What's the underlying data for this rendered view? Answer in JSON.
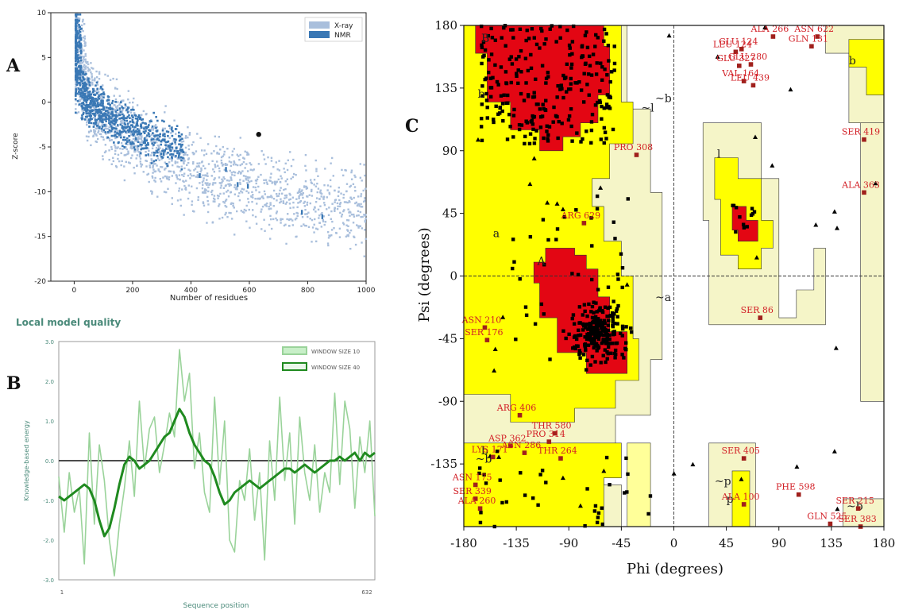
{
  "panel_labels": {
    "a": "A",
    "b": "B",
    "c": "C"
  },
  "chart_data": [
    {
      "id": "A",
      "type": "scatter",
      "title": "",
      "xlabel": "Number of residues",
      "ylabel": "Z-score",
      "xlim": [
        -80,
        1000
      ],
      "ylim": [
        -20,
        10
      ],
      "xticks": [
        0,
        200,
        400,
        600,
        800,
        1000
      ],
      "yticks": [
        -20,
        -15,
        -10,
        -5,
        0,
        5,
        10
      ],
      "legend": "top-right",
      "series": [
        {
          "name": "X-ray",
          "color": "#a9bfdc"
        },
        {
          "name": "NMR",
          "color": "#3a78b5"
        }
      ],
      "highlight_point": {
        "x": 632,
        "y": -3.6
      },
      "grid": false
    },
    {
      "id": "B",
      "type": "line",
      "title": "Local model quality",
      "xlabel": "Sequence position",
      "ylabel": "Knowledge-based energy",
      "xlim": [
        1,
        632
      ],
      "ylim": [
        -3.0,
        3.0
      ],
      "xticks": [
        1,
        632
      ],
      "yticks": [
        -3.0,
        -2.0,
        -1.0,
        0.0,
        1.0,
        2.0,
        3.0
      ],
      "legend": "top-right",
      "series": [
        {
          "name": "WINDOW SIZE 10",
          "color": "#9ad39a",
          "x": [
            1,
            12,
            22,
            32,
            42,
            52,
            62,
            72,
            82,
            92,
            102,
            112,
            122,
            132,
            142,
            152,
            162,
            172,
            182,
            192,
            202,
            212,
            222,
            232,
            242,
            252,
            262,
            272,
            282,
            292,
            302,
            312,
            322,
            332,
            342,
            352,
            362,
            372,
            382,
            392,
            402,
            412,
            422,
            432,
            442,
            452,
            462,
            472,
            482,
            492,
            502,
            512,
            522,
            532,
            542,
            552,
            562,
            572,
            582,
            592,
            602,
            612,
            622,
            632
          ],
          "values": [
            -0.4,
            -1.8,
            -0.3,
            -1.3,
            -0.7,
            -2.6,
            0.7,
            -1.6,
            0.4,
            -0.5,
            -2.0,
            -2.9,
            -1.6,
            -0.7,
            0.5,
            -0.9,
            1.5,
            -0.2,
            0.8,
            1.1,
            -0.3,
            0.4,
            1.2,
            0.6,
            2.8,
            1.5,
            2.2,
            -0.2,
            0.7,
            -0.8,
            -1.3,
            1.6,
            -0.6,
            1.0,
            -2.0,
            -2.3,
            -0.5,
            -1.0,
            0.3,
            -1.5,
            -0.3,
            -2.5,
            0.5,
            -1.0,
            1.6,
            -0.5,
            0.7,
            -1.6,
            1.1,
            -0.3,
            -1.0,
            0.4,
            -1.3,
            -0.3,
            -0.8,
            1.7,
            -0.6,
            1.5,
            0.8,
            -1.2,
            0.6,
            -0.3,
            1.0,
            -1.4
          ]
        },
        {
          "name": "WINDOW SIZE 40",
          "color": "#1f8a1f",
          "x": [
            1,
            12,
            22,
            32,
            42,
            52,
            62,
            72,
            82,
            92,
            102,
            112,
            122,
            132,
            142,
            152,
            162,
            172,
            182,
            192,
            202,
            212,
            222,
            232,
            242,
            252,
            262,
            272,
            282,
            292,
            302,
            312,
            322,
            332,
            342,
            352,
            362,
            372,
            382,
            392,
            402,
            412,
            422,
            432,
            442,
            452,
            462,
            472,
            482,
            492,
            502,
            512,
            522,
            532,
            542,
            552,
            562,
            572,
            582,
            592,
            602,
            612,
            622,
            632
          ],
          "values": [
            -0.9,
            -1.0,
            -0.9,
            -0.8,
            -0.7,
            -0.6,
            -0.7,
            -1.0,
            -1.5,
            -1.9,
            -1.7,
            -1.2,
            -0.6,
            -0.1,
            0.1,
            0.0,
            -0.2,
            -0.1,
            0.0,
            0.2,
            0.4,
            0.6,
            0.7,
            1.0,
            1.3,
            1.1,
            0.7,
            0.4,
            0.2,
            0.0,
            -0.1,
            -0.4,
            -0.8,
            -1.1,
            -1.0,
            -0.8,
            -0.7,
            -0.6,
            -0.5,
            -0.6,
            -0.7,
            -0.6,
            -0.5,
            -0.4,
            -0.3,
            -0.2,
            -0.2,
            -0.3,
            -0.2,
            -0.1,
            -0.2,
            -0.3,
            -0.2,
            -0.1,
            0.0,
            0.0,
            0.1,
            0.0,
            0.1,
            0.2,
            0.0,
            0.2,
            0.1,
            0.2
          ]
        }
      ],
      "zero_line": true
    },
    {
      "id": "C",
      "type": "scatter",
      "title": "",
      "xlabel": "Phi (degrees)",
      "ylabel": "Psi (degrees)",
      "xlim": [
        -180,
        180
      ],
      "ylim": [
        -180,
        180
      ],
      "xticks": [
        -180,
        -135,
        -90,
        -45,
        0,
        45,
        90,
        135,
        180
      ],
      "yticks": [
        -135,
        -90,
        -45,
        0,
        45,
        90,
        135,
        180
      ],
      "region_labels": [
        "B",
        "b",
        "b",
        "A",
        "a",
        "~a",
        "~b",
        "~l",
        "l",
        "~p",
        "p",
        "b",
        "~b",
        "~b"
      ],
      "colors": {
        "core": "#e30613",
        "allowed": "#ffff00",
        "generous": "#ffff99",
        "disallowed_generous": "#f5f5c8"
      },
      "labeled_residues": [
        {
          "label": "ALA 266",
          "phi": 85,
          "psi": 172
        },
        {
          "label": "ASN 622",
          "phi": 123,
          "psi": 172
        },
        {
          "label": "LEU 124",
          "phi": 53,
          "psi": 161
        },
        {
          "label": "GLU 124",
          "phi": 58,
          "psi": 163
        },
        {
          "label": "GLU 280",
          "phi": 66,
          "psi": 152
        },
        {
          "label": "GLU 327",
          "phi": 56,
          "psi": 151
        },
        {
          "label": "GLN 131",
          "phi": 118,
          "psi": 165
        },
        {
          "label": "VAL 164",
          "phi": 60,
          "psi": 140
        },
        {
          "label": "LEU 439",
          "phi": 68,
          "psi": 137
        },
        {
          "label": "SER 419",
          "phi": 163,
          "psi": 98
        },
        {
          "label": "PRO 308",
          "phi": -32,
          "psi": 87
        },
        {
          "label": "ALA 363",
          "phi": 163,
          "psi": 60
        },
        {
          "label": "ARG 629",
          "phi": -77,
          "psi": 38
        },
        {
          "label": "SER 86",
          "phi": 74,
          "psi": -30
        },
        {
          "label": "ASN 210",
          "phi": -162,
          "psi": -37
        },
        {
          "label": "SER 176",
          "phi": -160,
          "psi": -46
        },
        {
          "label": "ARG 406",
          "phi": -132,
          "psi": -100
        },
        {
          "label": "THR 580",
          "phi": -102,
          "psi": -113
        },
        {
          "label": "PRO 314",
          "phi": -107,
          "psi": -119
        },
        {
          "label": "ASP 362",
          "phi": -140,
          "psi": -122
        },
        {
          "label": "LYS 171",
          "phi": -155,
          "psi": -130
        },
        {
          "label": "ASN 286",
          "phi": -128,
          "psi": -127
        },
        {
          "label": "THR 264",
          "phi": -97,
          "psi": -131
        },
        {
          "label": "SER 405",
          "phi": 60,
          "psi": -131
        },
        {
          "label": "ASN 175",
          "phi": -170,
          "psi": -150
        },
        {
          "label": "SER 339",
          "phi": -170,
          "psi": -160
        },
        {
          "label": "ALA 260",
          "phi": -166,
          "psi": -167
        },
        {
          "label": "PHE 598",
          "phi": 107,
          "psi": -157
        },
        {
          "label": "ALA 100",
          "phi": 60,
          "psi": -164
        },
        {
          "label": "SER 215",
          "phi": 158,
          "psi": -167
        },
        {
          "label": "GLN 525",
          "phi": 134,
          "psi": -178
        },
        {
          "label": "SER 383",
          "phi": 160,
          "psi": -180
        }
      ]
    }
  ]
}
